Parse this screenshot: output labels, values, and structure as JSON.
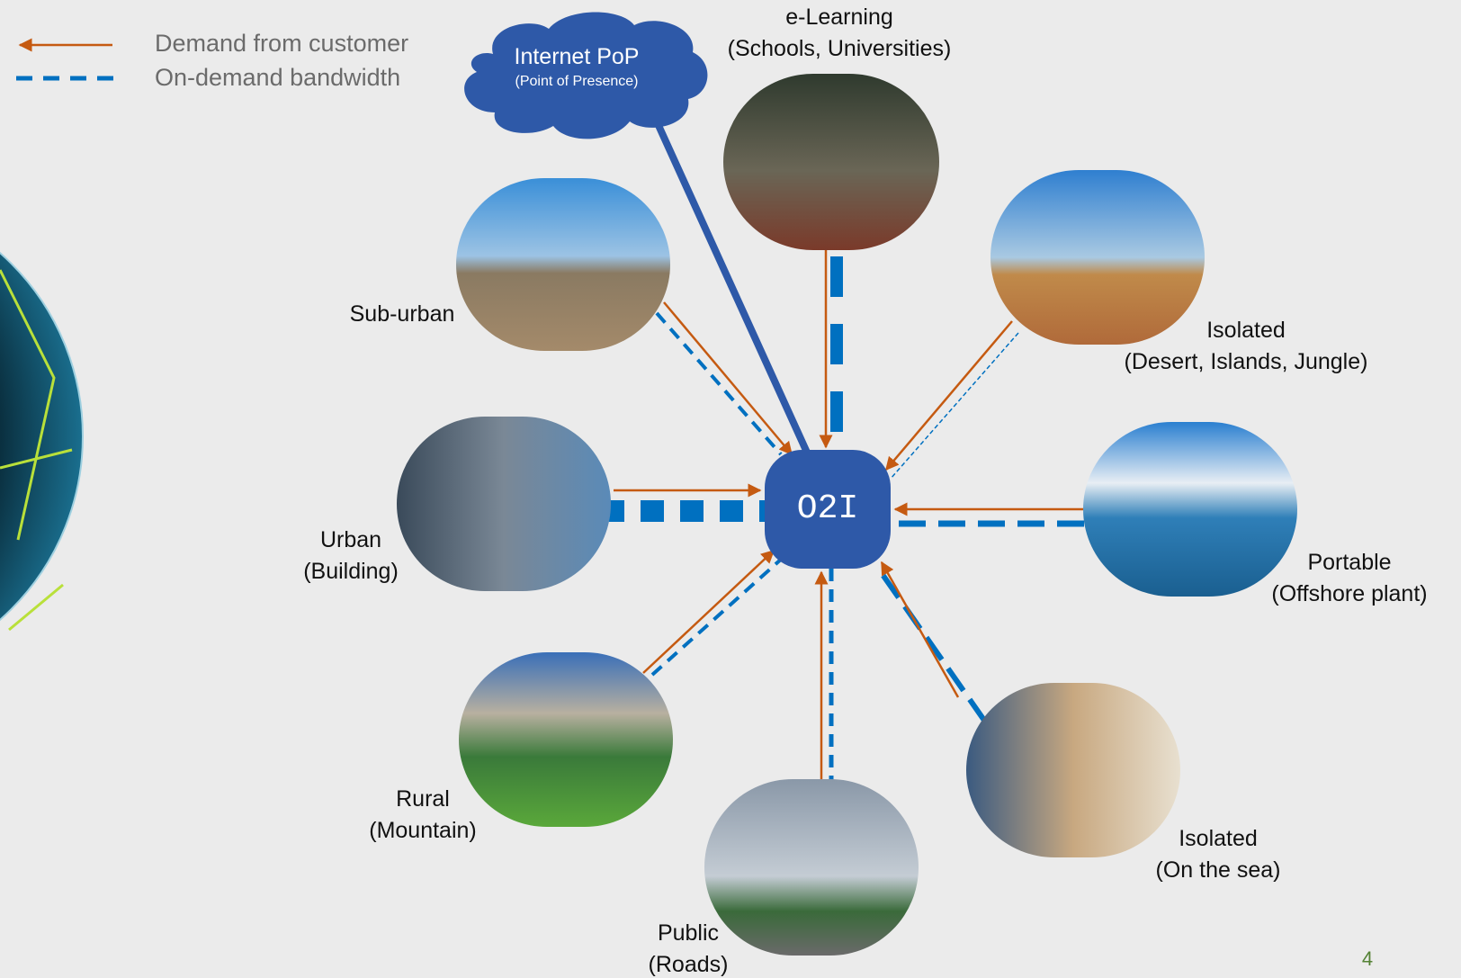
{
  "legend": {
    "items": [
      {
        "label": "Demand from customer"
      },
      {
        "label": "On-demand bandwidth"
      }
    ]
  },
  "cloud": {
    "title": "Internet PoP",
    "subtitle": "(Point of Presence)"
  },
  "center": {
    "label": "O2I"
  },
  "nodes": [
    {
      "label": "e-Learning",
      "sublabel": "(Schools, Universities)"
    },
    {
      "label": "Sub-urban"
    },
    {
      "label": "Isolated",
      "sublabel": "(Desert, Islands, Jungle)"
    },
    {
      "label": "Urban",
      "sublabel": "(Building)"
    },
    {
      "label": "Portable",
      "sublabel": "(Offshore plant)"
    },
    {
      "label": "Rural",
      "sublabel": "(Mountain)"
    },
    {
      "label": "Public",
      "sublabel": "(Roads)"
    },
    {
      "label": "Isolated",
      "sublabel": "(On the sea)"
    }
  ],
  "page_number": "4"
}
